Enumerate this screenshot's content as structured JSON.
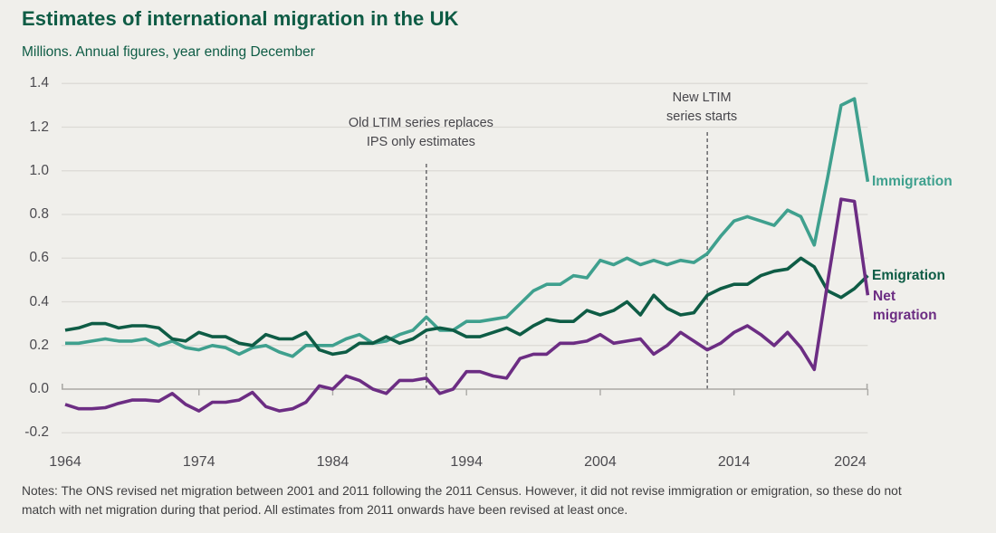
{
  "header": {
    "title": "Estimates of international migration in the UK",
    "subtitle": "Millions. Annual figures, year ending December"
  },
  "colors": {
    "background": "#f0efeb",
    "title_green": "#0e5c45",
    "grid": "#dbdad5",
    "axis": "#aaa9a5",
    "tick_label": "#4b4a4f",
    "annotation_text": "#47464b",
    "dashed_line": "#47464b",
    "notes_text": "#3e3e40"
  },
  "chart_data": {
    "type": "line",
    "title": "Estimates of international migration in the UK",
    "subtitle": "Millions. Annual figures, year ending December",
    "xlabel": "Year ending December",
    "ylabel": "Millions",
    "xlim": [
      1964,
      2024
    ],
    "ylim": [
      -0.2,
      1.4
    ],
    "grid": "horizontal",
    "legend_position": "labels-at-line-ends-right",
    "x_ticks": [
      1964,
      1974,
      1984,
      1994,
      2004,
      2014,
      2024
    ],
    "y_ticks": [
      {
        "label": "1.4",
        "value": 1.4
      },
      {
        "label": "1.2",
        "value": 1.2
      },
      {
        "label": "1.0",
        "value": 1.0
      },
      {
        "label": "0.8",
        "value": 0.8
      },
      {
        "label": "0.6",
        "value": 0.6
      },
      {
        "label": "0.4",
        "value": 0.4
      },
      {
        "label": "0.2",
        "value": 0.2
      },
      {
        "label": "0.0",
        "value": 0.0
      },
      {
        "label": "-0.2",
        "value": -0.2
      }
    ],
    "x": [
      1964,
      1965,
      1966,
      1967,
      1968,
      1969,
      1970,
      1971,
      1972,
      1973,
      1974,
      1975,
      1976,
      1977,
      1978,
      1979,
      1980,
      1981,
      1982,
      1983,
      1984,
      1985,
      1986,
      1987,
      1988,
      1989,
      1990,
      1991,
      1992,
      1993,
      1994,
      1995,
      1996,
      1997,
      1998,
      1999,
      2000,
      2001,
      2002,
      2003,
      2004,
      2005,
      2006,
      2007,
      2008,
      2009,
      2010,
      2011,
      2012,
      2013,
      2014,
      2015,
      2016,
      2017,
      2018,
      2019,
      2020,
      2021,
      2022,
      2023,
      2024
    ],
    "series": [
      {
        "name": "Immigration",
        "color": "#3fa08e",
        "values": [
          0.21,
          0.21,
          0.22,
          0.23,
          0.22,
          0.22,
          0.23,
          0.2,
          0.22,
          0.19,
          0.18,
          0.2,
          0.19,
          0.16,
          0.19,
          0.2,
          0.17,
          0.15,
          0.2,
          0.2,
          0.2,
          0.23,
          0.25,
          0.21,
          0.22,
          0.25,
          0.27,
          0.33,
          0.27,
          0.27,
          0.31,
          0.31,
          0.32,
          0.33,
          0.39,
          0.45,
          0.48,
          0.48,
          0.52,
          0.51,
          0.59,
          0.57,
          0.6,
          0.57,
          0.59,
          0.57,
          0.59,
          0.58,
          0.62,
          0.7,
          0.77,
          0.79,
          0.77,
          0.75,
          0.82,
          0.79,
          0.66,
          0.97,
          1.3,
          1.33,
          0.95
        ]
      },
      {
        "name": "Emigration",
        "color": "#0e5c45",
        "values": [
          0.27,
          0.28,
          0.3,
          0.3,
          0.28,
          0.29,
          0.29,
          0.28,
          0.23,
          0.22,
          0.26,
          0.24,
          0.24,
          0.21,
          0.2,
          0.25,
          0.23,
          0.23,
          0.26,
          0.18,
          0.16,
          0.17,
          0.21,
          0.21,
          0.24,
          0.21,
          0.23,
          0.27,
          0.28,
          0.27,
          0.24,
          0.24,
          0.26,
          0.28,
          0.25,
          0.29,
          0.32,
          0.31,
          0.31,
          0.36,
          0.34,
          0.36,
          0.4,
          0.34,
          0.43,
          0.37,
          0.34,
          0.35,
          0.43,
          0.46,
          0.48,
          0.48,
          0.52,
          0.54,
          0.55,
          0.6,
          0.56,
          0.45,
          0.42,
          0.46,
          0.52
        ]
      },
      {
        "name": "Net migration",
        "color": "#6c2d83",
        "values": [
          -0.07,
          -0.09,
          -0.09,
          -0.085,
          -0.065,
          -0.05,
          -0.05,
          -0.055,
          -0.02,
          -0.07,
          -0.1,
          -0.06,
          -0.06,
          -0.05,
          -0.015,
          -0.08,
          -0.1,
          -0.09,
          -0.06,
          0.015,
          0.0,
          0.06,
          0.04,
          0.0,
          -0.02,
          0.04,
          0.04,
          0.05,
          -0.02,
          0.0,
          0.08,
          0.08,
          0.06,
          0.05,
          0.14,
          0.16,
          0.16,
          0.21,
          0.21,
          0.22,
          0.25,
          0.21,
          0.22,
          0.23,
          0.16,
          0.2,
          0.26,
          0.22,
          0.18,
          0.21,
          0.26,
          0.29,
          0.25,
          0.2,
          0.26,
          0.19,
          0.09,
          0.49,
          0.87,
          0.86,
          0.43
        ]
      }
    ],
    "annotations": [
      {
        "text": [
          "Old LTIM series replaces",
          "IPS only estimates"
        ],
        "year": 1991
      },
      {
        "text": [
          "New LTIM",
          "series starts"
        ],
        "year": 2012
      }
    ]
  },
  "notes": {
    "line1": "Notes: The ONS revised net migration between 2001 and 2011 following the 2011 Census. However, it did not revise immigration or emigration, so these do not",
    "line2": "match with net migration during that period. All estimates from 2011 onwards have been revised at least once."
  }
}
